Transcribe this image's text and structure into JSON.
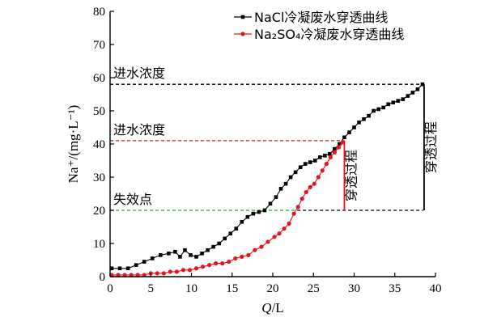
{
  "chart_data": {
    "type": "line",
    "xlabel_italic": "Q",
    "xlabel_rest": "/L",
    "ylabel": "Na⁺/(mg·L⁻¹)",
    "xlim": [
      0,
      40
    ],
    "ylim": [
      0,
      80
    ],
    "xticks": [
      "0",
      "5",
      "10",
      "15",
      "20",
      "25",
      "30",
      "35",
      "40"
    ],
    "yticks": [
      "0",
      "10",
      "20",
      "30",
      "40",
      "50",
      "60",
      "70",
      "80"
    ],
    "xtick_values": [
      0,
      5,
      10,
      15,
      20,
      25,
      30,
      35,
      40
    ],
    "ytick_values": [
      0,
      10,
      20,
      30,
      40,
      50,
      60,
      70,
      80
    ],
    "legend_position": "top-right",
    "series": [
      {
        "name": "NaCl冷凝废水穿透曲线",
        "color": "#000000",
        "marker": "square",
        "x": [
          0.2,
          1.2,
          2.2,
          3.2,
          4.2,
          5.2,
          6.2,
          7.2,
          8.0,
          8.6,
          9.2,
          9.9,
          10.6,
          11.3,
          12.0,
          12.7,
          13.4,
          14.1,
          14.8,
          15.5,
          16.2,
          16.9,
          17.6,
          18.3,
          19.0,
          19.7,
          20.4,
          21.0,
          21.6,
          22.2,
          22.8,
          23.4,
          24.0,
          24.6,
          25.2,
          25.8,
          26.4,
          27.0,
          27.6,
          28.2,
          28.8,
          29.4,
          30.0,
          30.6,
          31.2,
          31.8,
          32.4,
          33.0,
          33.6,
          34.2,
          34.8,
          35.4,
          36.0,
          36.6,
          37.2,
          37.8,
          38.4
        ],
        "y": [
          2.5,
          2.5,
          2.5,
          3.5,
          4.5,
          5.5,
          6.5,
          7.0,
          7.5,
          6.0,
          8.0,
          6.5,
          6.0,
          7.0,
          8.0,
          9.0,
          10.0,
          11.5,
          13.0,
          14.5,
          16.5,
          18.0,
          19.0,
          19.5,
          20.0,
          22.0,
          24.0,
          26.5,
          28.0,
          30.0,
          31.5,
          33.0,
          34.0,
          34.5,
          35.0,
          36.0,
          36.5,
          37.0,
          38.5,
          40.0,
          42.0,
          43.5,
          45.0,
          46.5,
          47.5,
          48.5,
          50.0,
          50.5,
          51.0,
          52.0,
          52.5,
          53.0,
          53.5,
          54.5,
          55.5,
          56.5,
          58.0
        ]
      },
      {
        "name": "Na₂SO₄冷凝废水穿透曲线",
        "color": "#e8131b",
        "marker": "circle",
        "x": [
          0.2,
          1.0,
          1.8,
          2.6,
          3.4,
          4.2,
          5.0,
          5.8,
          6.6,
          7.4,
          8.2,
          9.0,
          9.8,
          10.6,
          11.4,
          12.2,
          13.0,
          13.8,
          14.6,
          15.4,
          16.2,
          17.0,
          17.8,
          18.6,
          19.4,
          20.2,
          20.8,
          21.4,
          22.0,
          22.6,
          23.1,
          23.6,
          24.1,
          24.6,
          25.1,
          25.6,
          26.1,
          26.6,
          27.1,
          27.6,
          28.1,
          28.6
        ],
        "y": [
          0.5,
          0.5,
          0.5,
          0.5,
          0.5,
          0.5,
          1.0,
          1.0,
          1.0,
          1.5,
          1.5,
          2.0,
          2.0,
          2.5,
          3.0,
          3.5,
          4.0,
          4.0,
          4.5,
          5.5,
          6.0,
          6.5,
          8.0,
          9.0,
          10.5,
          12.0,
          13.0,
          14.5,
          16.0,
          19.0,
          21.0,
          23.5,
          25.5,
          27.0,
          28.0,
          30.0,
          32.0,
          34.0,
          36.0,
          37.5,
          39.0,
          40.5
        ]
      }
    ],
    "annotations": [
      {
        "text": "进水浓度",
        "y": 58,
        "color": "#000000",
        "x_end": 38.5
      },
      {
        "text": "进水浓度",
        "y": 41,
        "color": "#e8131b",
        "x_end": 28.8
      },
      {
        "text": "失效点",
        "y": 20,
        "color": "#22b022",
        "x_end": 23.0
      }
    ],
    "failure_extension": {
      "y": 20,
      "x_start": 23.0,
      "x_end": 38.5,
      "color": "#000000"
    },
    "breakthrough_bars": [
      {
        "text": "穿透过程",
        "x": 28.8,
        "y_from": 20,
        "y_to": 41,
        "color": "#e8131b"
      },
      {
        "text": "穿透过程",
        "x": 38.6,
        "y_from": 20,
        "y_to": 58,
        "color": "#000000"
      }
    ]
  }
}
